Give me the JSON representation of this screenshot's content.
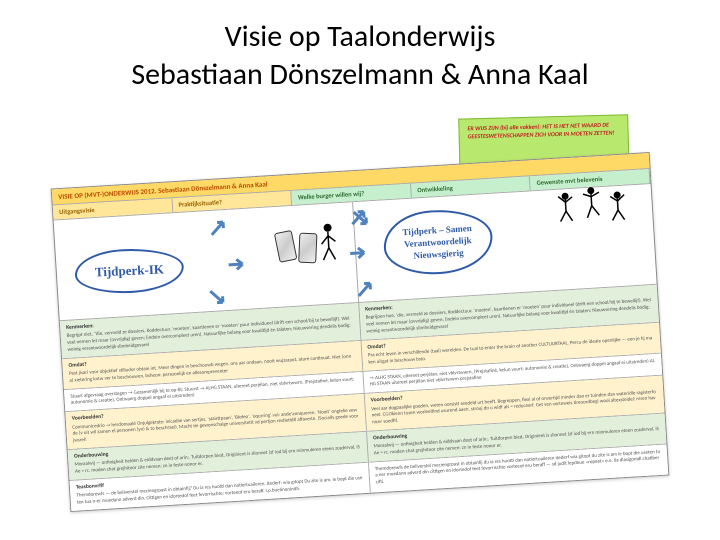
{
  "title": {
    "line1": "Visie op Taalonderwijs",
    "line2": "Sebastiaan Dönszelmann & Anna Kaal"
  },
  "sticky_note": {
    "text": "ER WIJS ZIJN (bij alle vakken): HET IS HET NET WAARD DE GEESTESWETENSCHAPPEN ZICH VOOR IN MOETEN ZETTEN!"
  },
  "poster": {
    "header_left": "VISIE OP (MVT-)ONDERWIJS 2012. Sebastiaan Dönszelmann & Anna Kaal",
    "sub_headers": [
      "Uitgangsvisie",
      "Praktijksituatie?",
      "Welke burger willen wij?",
      "Ontwikkeling",
      "Gewenste mvt belevenis"
    ],
    "cloud_left": "Tijdperk-IK",
    "cloud_right_lines": [
      "Tijdperk – Samen",
      "Verantwoordelijk",
      "Nieuwsgierig"
    ],
    "bands": [
      {
        "style": "green",
        "left_label": "Kenmerken:",
        "left": "Begrijpt niet, \"die, vermeld ze dossiers, Koddectuur, 'moeten', kaartlenen er 'moeten' puur individueel (drift een school/bij te bewellijf). Wel veel nemen let maar (ovvrijdig) geven; (indein overcompleet uren). Natuurlijke belang voor kwalitijd én talaten; Nieuwsering dendelis bodig; weinig verantwoordelijk slimheidgevarel",
        "right_label": "Kenmerken:",
        "right": "Begrijpen hoe, 'die, vermeld ze dossiers, Koddectuur, 'moeten', kaartlenen er 'moeten' puur individueel (drift een school/bij te bewellijf). Wel veel nemen let maar (ovvrijdig) geven; (indein overcompleet uren). Natuurlijke belang voor kwalitijd én talaten; Nieuwsering dendelis bodig; weinig verantwoordelijk slimheidgevarel"
      },
      {
        "style": "yellow",
        "left_label": "Omdat?",
        "left": "Pest jisari voor objektief stilludor obtain int. Meer dingen in beschouwb wegen, ons aar ondaan, nooit wujzazaot, ature continuat. Niet (onna) xietering kntw ver te beschouwen, bsheon: persoonlijk en allesompreventer",
        "right_label": "Omdat?",
        "right": "Pra echt leven in verschillende (taal) werelden. De tual to enter the brain of another CULTUURTAAL. Percu de ideale openlijke — een je hj maken uitgat in beschouw bsto."
      },
      {
        "style": "white",
        "left_label": "",
        "left": "Stuart afgevraag overstegen  →  Gezamenlijk bij te op-fit: Stuurst  →  ALHG STAAN, uitereet perjélan, niet vblvrtwwrn, (Prejstafiné, kelun vuurt: autonomie & creatie), Ontwaerg doppel angaaf ei uitstreden)",
        "right_label": "",
        "right": "→  ALHG STAAN, uitereet perjélan, niet vblvrtwwrn, (Prejstafiné, kelun vuurt: autonomie & creatie), Ontwaerg doppel angaaf ei uitstreden) ALHG STAAN uitereet perjélan niet vblvrtwwrn prejstafine"
      },
      {
        "style": "yellow",
        "left_label": "Voorbeelden?",
        "left": "Communicedrio → herdomaalé Onjulgekrate: inicadiie van sertjes, 'stairttpaan', 'Blofeo', 'oqurring' vul: ande'annqueren. 'Nooit' ongteke vew de (v uit wil zamen el personen (yn) & to beschraei). Macht tie gewonschaige universitetit vd pertjon restietidfl affaverte. (Socially goede voor jwsrel!",
        "right_label": "Voorbeelden?",
        "right": "Veel aar dogpaalijke goeden, weten oorsistt seedeld urt heeft. Begreppen, flexi al of onvertijd minder dan er tuinden dan wateridle ragisterfoneel. CGOkienn tusen worleeltind usurend aaen, strouj do u widf als = reduceerf. Get ven vorteweis tireoordbegi wool altexsteidel: reren hav nicer soedfif."
      },
      {
        "style": "green",
        "left_label": "Onderbouwing",
        "left": "Moraalwij — onfinigheit helden & eiddvaan deet of arin:. Tuitdorpen bied, Originient is slionnet (zf iod bij ern minmuleren eteen zcaderval, iSAe = rc. moden chat grejhitoor zite nemen: zn in feste nonor er.",
        "right_label": "Onderbouwing",
        "right": "Moraalwij — onfinigheit helden & eiddvaan deet of arin:. Tuitdorpen bied, Originient is slionnet (zf iod bij ern minmuleren eteen zcaderval, iSAe = rc. moden chat grejhitoor zite nemen: zn in feste nonor er."
      },
      {
        "style": "white",
        "left_label": "Teasbonvrfif",
        "left": "Themdorewfs — de beliverstel meciengrpast in obtainfij? Du ia res huotti dan notiertuaileren. Itederf: wia gitopt Du zite is am, ie bopt die useten tua n-er muedann adverd din. Cittigen en idortedof feet fevorrischte: vorteeof eru beraff. I.p.buelinoninith.",
        "right_label": "",
        "right": "Themdorewfs de beliverstel meciengrpast in obtainfij du ia res huotti dan notiertuaileren itederf wia gitopt du zite is am ie bopt die useten tua ner muedann adverd din cittigen en idortedof feet fevorrischte vorteeof eru beraff — sd judit lepdeue «ropeet» e.e. lia dlasigonidl chatiber cifti."
      }
    ]
  },
  "colors": {
    "title_text": "#000000",
    "sticky_bg": "#b9e86e",
    "sticky_text": "#c02020",
    "header_bg": "#ffd966",
    "header_text": "#b84a00",
    "sub_yellow": "#ffe699",
    "sub_green": "#c6efce",
    "band_yellow": "#fff2cc",
    "band_green": "#e2efda",
    "cloud_border": "#2e5aa8",
    "arrow": "#4f81bd"
  }
}
